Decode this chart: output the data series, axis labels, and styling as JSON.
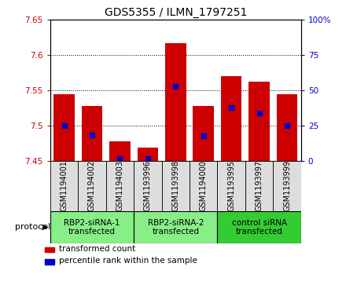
{
  "title": "GDS5355 / ILMN_1797251",
  "samples": [
    "GSM1194001",
    "GSM1194002",
    "GSM1194003",
    "GSM1193996",
    "GSM1193998",
    "GSM1194000",
    "GSM1193995",
    "GSM1193997",
    "GSM1193999"
  ],
  "red_tops": [
    7.545,
    7.528,
    7.478,
    7.469,
    7.617,
    7.528,
    7.57,
    7.563,
    7.545
  ],
  "blue_positions": [
    7.5,
    7.487,
    7.454,
    7.454,
    7.556,
    7.486,
    7.526,
    7.518,
    7.5
  ],
  "ylim_left": [
    7.45,
    7.65
  ],
  "ylim_right": [
    0,
    100
  ],
  "yticks_left": [
    7.45,
    7.5,
    7.55,
    7.6,
    7.65
  ],
  "yticks_right": [
    0,
    25,
    50,
    75,
    100
  ],
  "ytick_labels_left": [
    "7.45",
    "7.5",
    "7.55",
    "7.6",
    "7.65"
  ],
  "ytick_labels_right": [
    "0",
    "25",
    "50",
    "75",
    "100%"
  ],
  "bar_bottom": 7.45,
  "bar_width": 0.75,
  "red_color": "#CC0000",
  "blue_color": "#0000CC",
  "bg_color": "#ffffff",
  "cell_bg": "#dddddd",
  "protocol_groups": [
    {
      "label": "RBP2-siRNA-1\ntransfected",
      "start": 0,
      "end": 3,
      "color": "#88ee88"
    },
    {
      "label": "RBP2-siRNA-2\ntransfected",
      "start": 3,
      "end": 6,
      "color": "#88ee88"
    },
    {
      "label": "control siRNA\ntransfected",
      "start": 6,
      "end": 9,
      "color": "#33cc33"
    }
  ],
  "legend_items": [
    {
      "color": "#CC0000",
      "label": "transformed count"
    },
    {
      "color": "#0000CC",
      "label": "percentile rank within the sample"
    }
  ],
  "protocol_label": "protocol",
  "title_fontsize": 10,
  "tick_fontsize": 7.5,
  "label_fontsize": 7,
  "proto_fontsize": 7.5
}
